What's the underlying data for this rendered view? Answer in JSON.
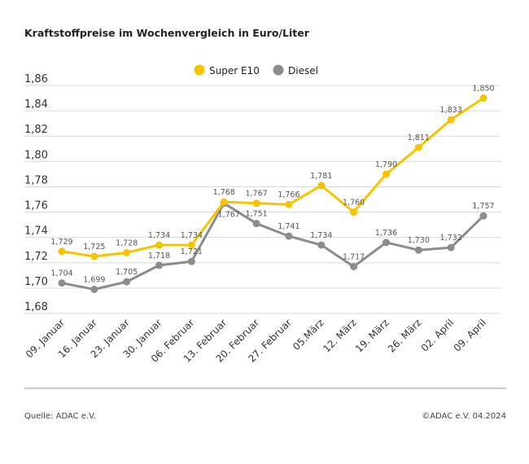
{
  "title": "Kraftstoffpreise im Wochenvergleich in Euro/Liter",
  "source": "Quelle: ADAC e.V.",
  "copyright": "©ADAC e.V. 04.2024",
  "chart_data": {
    "type": "line",
    "title": "Kraftstoffpreise im Wochenvergleich in Euro/Liter",
    "categories": [
      "09. Januar",
      "16. Januar",
      "23. Januar",
      "30. Januar",
      "06. Februar",
      "13. Februar",
      "20. Februar",
      "27. Februar",
      "05.März",
      "12. März",
      "19. März",
      "26. März",
      "02. April",
      "09. April"
    ],
    "series": [
      {
        "name": "Super E10",
        "color": "#f5c400",
        "values": [
          1.729,
          1.725,
          1.728,
          1.734,
          1.734,
          1.768,
          1.767,
          1.766,
          1.781,
          1.76,
          1.79,
          1.811,
          1.833,
          1.85
        ],
        "labels": [
          "1,729",
          "1,725",
          "1,728",
          "1,734",
          "1,734",
          "1,768",
          "1,767",
          "1,766",
          "1,781",
          "1,760",
          "1,790",
          "1,811",
          "1,833",
          "1,850"
        ]
      },
      {
        "name": "Diesel",
        "color": "#8c8c8c",
        "values": [
          1.704,
          1.699,
          1.705,
          1.718,
          1.721,
          1.767,
          1.751,
          1.741,
          1.734,
          1.717,
          1.736,
          1.73,
          1.732,
          1.757
        ],
        "labels": [
          "1,704",
          "1,699",
          "1,705",
          "1,718",
          "1,721",
          "1,767",
          "1,751",
          "1,741",
          "1,734",
          "1,717",
          "1,736",
          "1,730",
          "1,732",
          "1,757"
        ]
      }
    ],
    "ylim": [
      1.68,
      1.86
    ],
    "yticks": [
      "1,68",
      "1,70",
      "1,72",
      "1,74",
      "1,76",
      "1,78",
      "1,80",
      "1,82",
      "1,84",
      "1,86"
    ],
    "grid": true,
    "legend": "top-center"
  }
}
